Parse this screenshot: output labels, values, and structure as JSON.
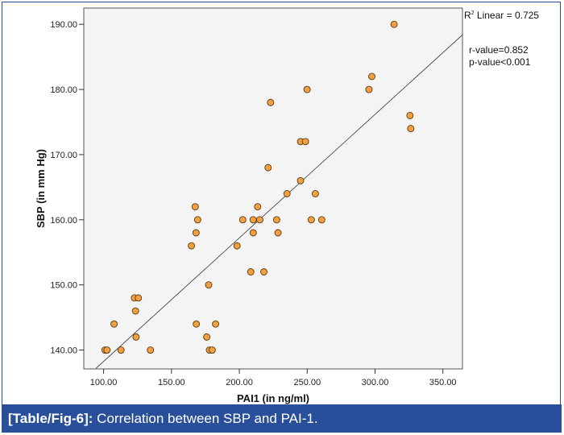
{
  "chart_data": {
    "type": "scatter",
    "xlabel": "PAI1 (in ng/ml)",
    "ylabel": "SBP (in mm Hg)",
    "xlim": [
      85.4,
      364.4
    ],
    "ylim": [
      137.1,
      192.5
    ],
    "xticks": [
      "100.00",
      "150.00",
      "200.00",
      "250.00",
      "300.00",
      "350.00"
    ],
    "xtick_values": [
      100,
      150,
      200,
      250,
      300,
      350
    ],
    "yticks": [
      "140.00",
      "150.00",
      "160.00",
      "170.00",
      "180.00",
      "190.00"
    ],
    "ytick_values": [
      140,
      150,
      160,
      170,
      180,
      190
    ],
    "grid": false,
    "point_color": "#f0a040",
    "points": [
      [
        101,
        140
      ],
      [
        102.5,
        140
      ],
      [
        112.8,
        140
      ],
      [
        134.5,
        140
      ],
      [
        107.7,
        144
      ],
      [
        123.9,
        142
      ],
      [
        123.5,
        146
      ],
      [
        122.7,
        148
      ],
      [
        125.6,
        148
      ],
      [
        164.7,
        156
      ],
      [
        168.1,
        158
      ],
      [
        169.3,
        160
      ],
      [
        167.5,
        162
      ],
      [
        168.3,
        144
      ],
      [
        176,
        142
      ],
      [
        177.4,
        150
      ],
      [
        178,
        140
      ],
      [
        180,
        140
      ],
      [
        182.5,
        144
      ],
      [
        198.3,
        156
      ],
      [
        202.5,
        160
      ],
      [
        210.2,
        160
      ],
      [
        215.1,
        160
      ],
      [
        210.2,
        158
      ],
      [
        213.5,
        162
      ],
      [
        208.4,
        152
      ],
      [
        218.1,
        152
      ],
      [
        227.5,
        160
      ],
      [
        228.5,
        158
      ],
      [
        235.1,
        164
      ],
      [
        245.1,
        166
      ],
      [
        221.2,
        168
      ],
      [
        245.1,
        172
      ],
      [
        248.7,
        172
      ],
      [
        223,
        178
      ],
      [
        249.9,
        180
      ],
      [
        256,
        164
      ],
      [
        253,
        160
      ],
      [
        260.7,
        160
      ],
      [
        295.5,
        180
      ],
      [
        297.6,
        182
      ],
      [
        314,
        190
      ],
      [
        325.7,
        176
      ],
      [
        326.3,
        174
      ]
    ],
    "fit_line": {
      "slope": 0.1896,
      "intercept": 119.3,
      "x_range": [
        94.4,
        364.6
      ]
    },
    "annotations": {
      "r2_prefix": "R",
      "r2_sup": "2",
      "r2_text": " Linear = 0.725",
      "r_value": "r-value=0.852",
      "p_value": "p-value<0.001"
    }
  },
  "caption": {
    "label": "[Table/Fig-6]:",
    "text": " Correlation between SBP and PAI-1."
  }
}
